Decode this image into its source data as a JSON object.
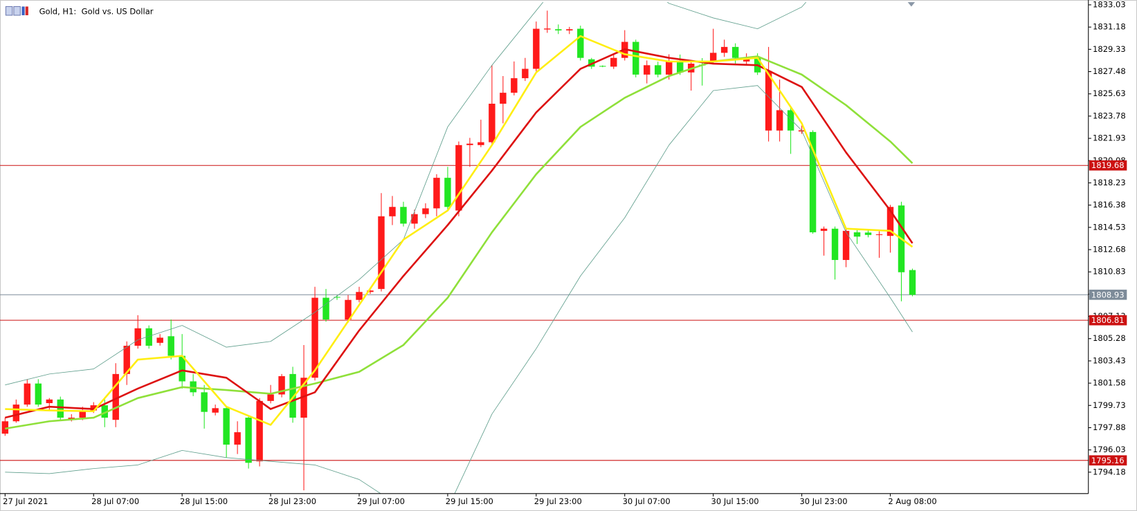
{
  "chart_data": {
    "type": "candlestick",
    "title": "Gold, H1:  Gold vs. US Dollar",
    "categories": [
      "27 Jul 2021",
      null,
      null,
      null,
      null,
      null,
      null,
      null,
      "28 Jul 07:00",
      null,
      null,
      null,
      null,
      null,
      null,
      null,
      "28 Jul 15:00",
      null,
      null,
      null,
      null,
      null,
      null,
      null,
      "28 Jul 23:00",
      null,
      null,
      null,
      null,
      null,
      null,
      null,
      "29 Jul 07:00",
      null,
      null,
      null,
      null,
      null,
      null,
      null,
      "29 Jul 15:00",
      null,
      null,
      null,
      null,
      null,
      null,
      null,
      "29 Jul 23:00",
      null,
      null,
      null,
      null,
      null,
      null,
      null,
      "30 Jul 07:00",
      null,
      null,
      null,
      null,
      null,
      null,
      null,
      "30 Jul 15:00",
      null,
      null,
      null,
      null,
      null,
      null,
      null,
      "30 Jul 23:00",
      null,
      null,
      null,
      null,
      null,
      null,
      null,
      "2 Aug 08:00",
      null,
      null
    ],
    "open": [
      1797.38,
      1798.41,
      1799.8,
      1801.55,
      1799.92,
      1800.22,
      1798.6,
      1798.71,
      1799.31,
      1799.74,
      1798.53,
      1802.34,
      1804.69,
      1806.14,
      1804.93,
      1805.48,
      1803.85,
      1801.73,
      1800.82,
      1799.13,
      1799.5,
      1796.47,
      1798.71,
      1795.08,
      1800.1,
      1800.64,
      1802.34,
      1798.71,
      1802.03,
      1808.68,
      1808.75,
      1806.87,
      1808.5,
      1809.16,
      1809.41,
      1815.45,
      1816.23,
      1814.84,
      1815.63,
      1816.11,
      1818.65,
      1815.93,
      1821.37,
      1821.37,
      1821.61,
      1824.81,
      1825.72,
      1826.93,
      1827.71,
      1830.98,
      1831.0,
      1830.9,
      1831.04,
      1828.5,
      1827.95,
      1827.89,
      1828.62,
      1829.95,
      1827.23,
      1828.01,
      1827.23,
      1828.32,
      1827.41,
      1828.05,
      1828.32,
      1829.04,
      1829.53,
      1828.32,
      1828.62,
      1822.58,
      1822.58,
      1824.27,
      1822.5,
      1822.46,
      1814.24,
      1814.42,
      1811.82,
      1814.12,
      1814.1,
      1813.9,
      1813.82,
      1816.35,
      1810.98
    ],
    "high": [
      1798.71,
      1800.22,
      1801.91,
      1801.91,
      1800.34,
      1800.46,
      1799.0,
      1799.62,
      1800.0,
      1800.22,
      1803.24,
      1805.05,
      1807.23,
      1806.38,
      1805.66,
      1806.87,
      1805.66,
      1802.34,
      1801.43,
      1799.8,
      1799.62,
      1798.41,
      1798.89,
      1800.34,
      1801.43,
      1802.34,
      1802.94,
      1804.75,
      1809.59,
      1809.41,
      1808.9,
      1808.9,
      1809.59,
      1809.4,
      1817.38,
      1817.14,
      1816.66,
      1816.0,
      1816.53,
      1818.95,
      1819.56,
      1821.67,
      1821.97,
      1823.48,
      1828.01,
      1827.11,
      1828.32,
      1828.62,
      1831.64,
      1832.55,
      1831.4,
      1831.2,
      1831.3,
      1828.62,
      1828.0,
      1829.0,
      1830.92,
      1830.13,
      1828.4,
      1828.3,
      1828.92,
      1828.9,
      1828.4,
      1828.6,
      1831.04,
      1830.13,
      1829.83,
      1829.0,
      1829.0,
      1829.53,
      1826.81,
      1824.5,
      1823.0,
      1822.6,
      1814.6,
      1814.6,
      1814.5,
      1814.3,
      1814.3,
      1814.2,
      1816.4,
      1816.66,
      1811.1
    ],
    "low": [
      1797.2,
      1798.29,
      1799.62,
      1799.62,
      1799.32,
      1798.53,
      1798.4,
      1798.5,
      1799.1,
      1797.92,
      1797.92,
      1801.43,
      1804.45,
      1804.45,
      1804.7,
      1803.55,
      1801.13,
      1800.5,
      1797.8,
      1798.9,
      1795.39,
      1795.69,
      1794.48,
      1794.66,
      1799.9,
      1800.4,
      1798.29,
      1792.67,
      1801.8,
      1806.69,
      1808.5,
      1806.6,
      1808.3,
      1809.0,
      1809.2,
      1814.72,
      1814.6,
      1814.42,
      1815.3,
      1815.45,
      1815.93,
      1815.45,
      1819.56,
      1821.2,
      1821.4,
      1823.18,
      1825.5,
      1826.7,
      1827.5,
      1830.7,
      1830.6,
      1830.6,
      1828.4,
      1827.7,
      1827.85,
      1827.7,
      1828.4,
      1827.0,
      1826.5,
      1827.0,
      1826.81,
      1827.2,
      1825.9,
      1826.32,
      1828.1,
      1828.7,
      1828.01,
      1828.0,
      1827.2,
      1821.67,
      1821.67,
      1820.64,
      1822.3,
      1814.0,
      1812.18,
      1810.19,
      1811.22,
      1813.15,
      1813.7,
      1812.0,
      1812.43,
      1808.38,
      1808.8
    ],
    "close": [
      1798.41,
      1799.8,
      1801.55,
      1799.8,
      1800.22,
      1798.71,
      1798.71,
      1799.31,
      1799.74,
      1798.71,
      1802.34,
      1804.69,
      1806.14,
      1804.69,
      1805.36,
      1803.85,
      1801.73,
      1800.82,
      1799.19,
      1799.5,
      1796.47,
      1797.5,
      1794.96,
      1800.1,
      1800.64,
      1802.16,
      1798.71,
      1802.03,
      1808.68,
      1806.87,
      1808.7,
      1808.5,
      1809.16,
      1809.28,
      1815.45,
      1816.23,
      1814.84,
      1815.63,
      1816.11,
      1818.65,
      1816.23,
      1821.37,
      1821.49,
      1821.61,
      1824.81,
      1825.72,
      1826.93,
      1827.71,
      1831.04,
      1831.06,
      1830.9,
      1831.0,
      1828.62,
      1827.89,
      1827.9,
      1828.62,
      1829.95,
      1827.23,
      1828.01,
      1827.23,
      1828.32,
      1827.41,
      1828.14,
      1828.0,
      1829.04,
      1829.53,
      1828.62,
      1828.62,
      1827.41,
      1827.53,
      1824.27,
      1822.58,
      1822.6,
      1814.12,
      1814.42,
      1811.82,
      1814.24,
      1813.76,
      1813.9,
      1813.95,
      1816.23,
      1810.8,
      1808.92
    ],
    "up_color": "#ff1a1a",
    "down_color": "#22e622",
    "overlays": [
      {
        "color": "#5f9e8c",
        "width": 0.8,
        "x": [
          0,
          4,
          8,
          12,
          16,
          20,
          24,
          28,
          32,
          36,
          40,
          44,
          48,
          52,
          56,
          60,
          64,
          68,
          72,
          76,
          80,
          82
        ],
        "values": [
          1801.43,
          1802.34,
          1802.76,
          1805.18,
          1806.38,
          1804.57,
          1805.05,
          1807.47,
          1810.19,
          1813.51,
          1822.88,
          1828.01,
          1832.55,
          1837.08,
          1835.87,
          1833.15,
          1831.94,
          1831.04,
          1832.85,
          1837.08,
          1838.29,
          1838.29
        ]
      },
      {
        "color": "#5f9e8c",
        "width": 0.8,
        "x": [
          0,
          4,
          8,
          12,
          16,
          20,
          24,
          28,
          32,
          36,
          40,
          44,
          48,
          52,
          56,
          60,
          64,
          68,
          72,
          76,
          80,
          82
        ],
        "values": [
          1794.18,
          1794.06,
          1794.48,
          1794.78,
          1795.99,
          1795.39,
          1795.08,
          1794.78,
          1793.57,
          1791.16,
          1791.16,
          1799.01,
          1804.45,
          1810.49,
          1815.33,
          1821.37,
          1825.9,
          1826.32,
          1822.58,
          1814.12,
          1808.68,
          1805.84
        ]
      },
      {
        "color": "#8fe03a",
        "width": 2.5,
        "x": [
          0,
          4,
          8,
          12,
          16,
          20,
          24,
          28,
          32,
          36,
          40,
          44,
          48,
          52,
          56,
          60,
          64,
          68,
          72,
          76,
          80,
          82
        ],
        "values": [
          1797.8,
          1798.41,
          1798.71,
          1800.34,
          1801.25,
          1801.01,
          1800.7,
          1801.55,
          1802.52,
          1804.75,
          1808.68,
          1814.12,
          1818.95,
          1822.88,
          1825.3,
          1827.11,
          1828.32,
          1828.74,
          1827.23,
          1824.69,
          1821.67,
          1819.86
        ]
      },
      {
        "color": "#dd1111",
        "width": 2.5,
        "x": [
          0,
          4,
          8,
          12,
          16,
          20,
          24,
          28,
          32,
          36,
          40,
          44,
          48,
          52,
          56,
          60,
          64,
          68,
          72,
          76,
          80,
          82
        ],
        "values": [
          1798.71,
          1799.62,
          1799.43,
          1801.13,
          1802.64,
          1802.03,
          1799.43,
          1800.82,
          1805.96,
          1810.49,
          1814.72,
          1819.25,
          1824.09,
          1827.71,
          1829.34,
          1828.62,
          1828.14,
          1828.01,
          1826.2,
          1820.76,
          1815.93,
          1813.21
        ]
      },
      {
        "color": "#ffee11",
        "width": 2.5,
        "x": [
          0,
          4,
          8,
          12,
          16,
          20,
          24,
          28,
          32,
          36,
          40,
          44,
          48,
          52,
          56,
          60,
          64,
          68,
          72,
          76,
          80,
          82
        ],
        "values": [
          1799.43,
          1799.31,
          1799.25,
          1803.54,
          1803.85,
          1799.62,
          1798.11,
          1802.64,
          1808.08,
          1813.51,
          1815.93,
          1821.37,
          1827.41,
          1830.43,
          1828.92,
          1828.32,
          1828.32,
          1828.62,
          1823.18,
          1814.42,
          1814.24,
          1812.91
        ]
      }
    ],
    "hlines": [
      {
        "value": 1819.68,
        "color": "#cc1111"
      },
      {
        "value": 1808.93,
        "color": "#7d8b99"
      },
      {
        "value": 1806.81,
        "color": "#cc1111"
      },
      {
        "value": 1795.16,
        "color": "#cc1111"
      }
    ],
    "ylim": [
      1792.4,
      1833.25
    ],
    "yticks": [
      1833.03,
      1831.18,
      1829.33,
      1827.48,
      1825.63,
      1823.78,
      1821.93,
      1820.08,
      1818.23,
      1816.38,
      1814.53,
      1812.68,
      1810.83,
      1808.98,
      1807.13,
      1805.28,
      1803.43,
      1801.58,
      1799.73,
      1797.88,
      1796.03,
      1794.18
    ],
    "grid": false
  }
}
